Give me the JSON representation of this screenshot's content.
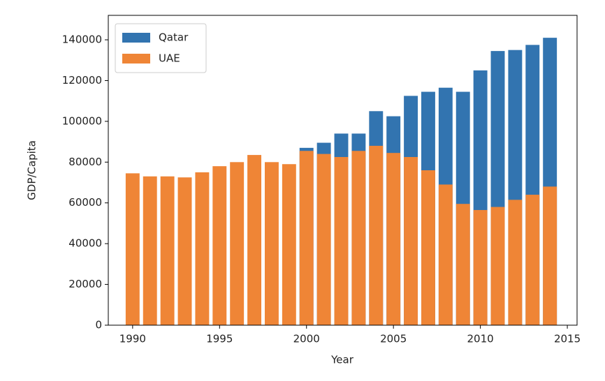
{
  "chart_data": {
    "type": "bar",
    "xlabel": "Year",
    "ylabel": "GDP/Capita",
    "x": [
      1990,
      1991,
      1992,
      1993,
      1994,
      1995,
      1996,
      1997,
      1998,
      1999,
      2000,
      2001,
      2002,
      2003,
      2004,
      2005,
      2006,
      2007,
      2008,
      2009,
      2010,
      2011,
      2012,
      2013,
      2014
    ],
    "series": [
      {
        "name": "Qatar",
        "color": "#3274b0",
        "values": [
          null,
          null,
          null,
          null,
          null,
          null,
          null,
          null,
          null,
          null,
          87000,
          89500,
          94000,
          94000,
          105000,
          102500,
          112500,
          114500,
          116500,
          114500,
          125000,
          134500,
          135000,
          137500,
          141000
        ]
      },
      {
        "name": "UAE",
        "color": "#ef8536",
        "values": [
          74500,
          73000,
          73000,
          72500,
          75000,
          78000,
          80000,
          83500,
          80000,
          79000,
          85500,
          84000,
          82500,
          85500,
          88000,
          84500,
          82500,
          76000,
          69000,
          59500,
          56500,
          58000,
          61500,
          64000,
          68000
        ]
      }
    ],
    "xlim": [
      1988.6,
      2015.56
    ],
    "xticks": [
      1990,
      1995,
      2000,
      2005,
      2010,
      2015
    ],
    "ylim": [
      0,
      152000
    ],
    "yticks": [
      0,
      20000,
      40000,
      60000,
      80000,
      100000,
      120000,
      140000
    ],
    "bar_width": 0.8,
    "legend": "upper left"
  }
}
